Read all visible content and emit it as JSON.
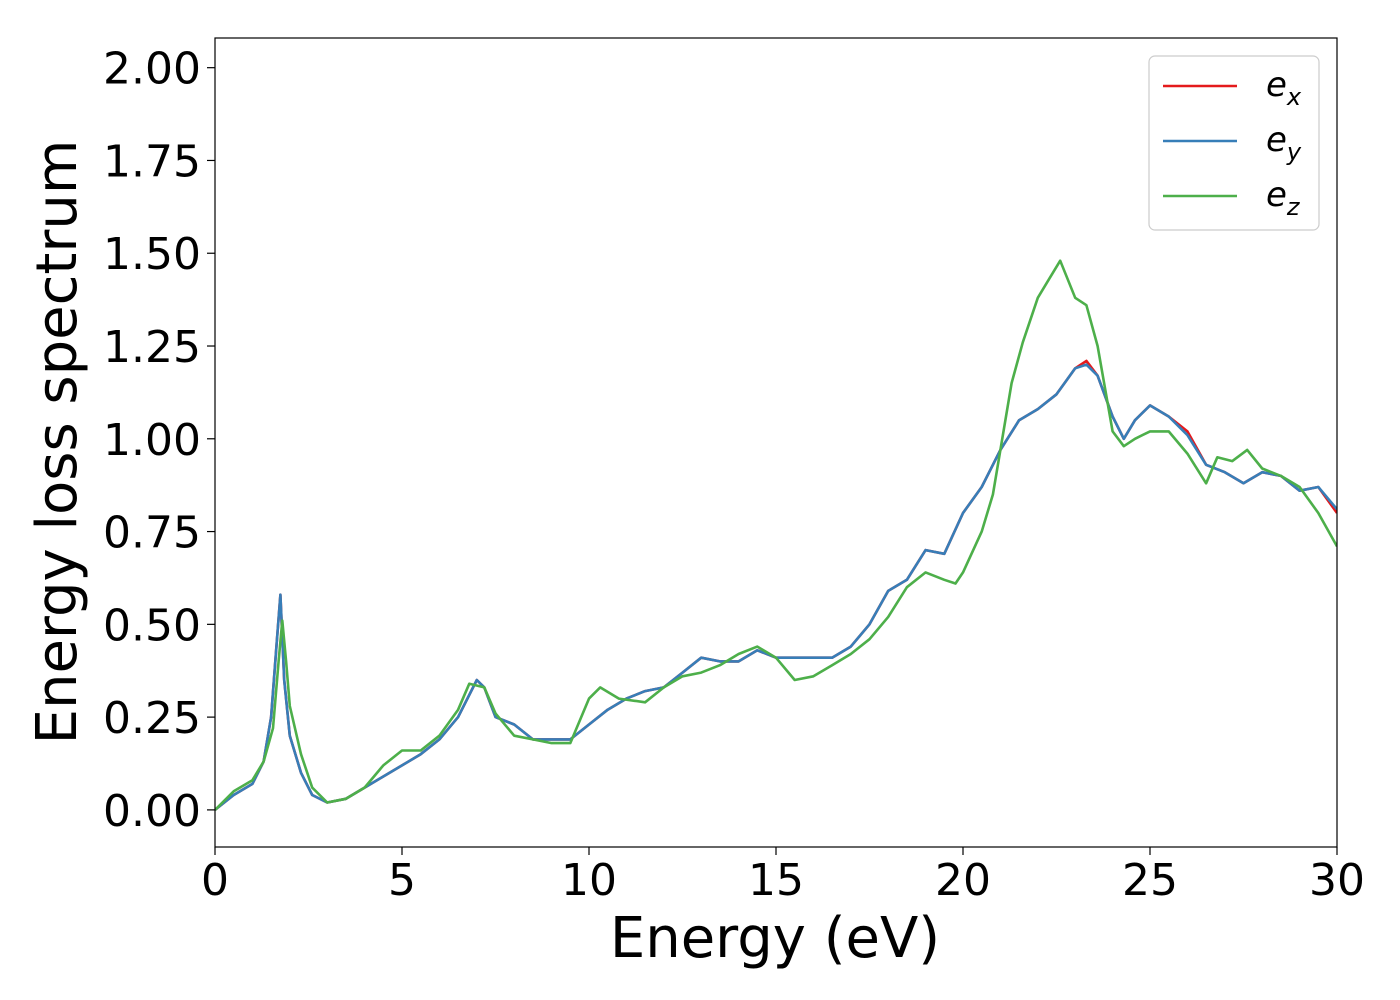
{
  "chart_data": {
    "type": "line",
    "title": "",
    "xlabel": "Energy (eV)",
    "ylabel": "Energy loss spectrum",
    "xlim": [
      0,
      30
    ],
    "ylim": [
      -0.1,
      2.08
    ],
    "xticks": [
      0,
      5,
      10,
      15,
      20,
      25,
      30
    ],
    "xtick_labels": [
      "0",
      "5",
      "10",
      "15",
      "20",
      "25",
      "30"
    ],
    "yticks": [
      0.0,
      0.25,
      0.5,
      0.75,
      1.0,
      1.25,
      1.5,
      1.75,
      2.0
    ],
    "ytick_labels": [
      "0.00",
      "0.25",
      "0.50",
      "0.75",
      "1.00",
      "1.25",
      "1.50",
      "1.75",
      "2.00"
    ],
    "grid": false,
    "legend_position": "top-right",
    "series": [
      {
        "name": "e_x",
        "label_base": "e",
        "label_sub": "x",
        "color": "#e41a1c",
        "points": [
          [
            0,
            0
          ],
          [
            0.5,
            0.04
          ],
          [
            1.0,
            0.07
          ],
          [
            1.3,
            0.13
          ],
          [
            1.5,
            0.25
          ],
          [
            1.65,
            0.45
          ],
          [
            1.75,
            0.58
          ],
          [
            1.85,
            0.35
          ],
          [
            2.0,
            0.2
          ],
          [
            2.3,
            0.1
          ],
          [
            2.6,
            0.04
          ],
          [
            3.0,
            0.02
          ],
          [
            3.5,
            0.03
          ],
          [
            4.0,
            0.06
          ],
          [
            4.5,
            0.09
          ],
          [
            5.0,
            0.12
          ],
          [
            5.5,
            0.15
          ],
          [
            6.0,
            0.19
          ],
          [
            6.5,
            0.25
          ],
          [
            7.0,
            0.35
          ],
          [
            7.2,
            0.33
          ],
          [
            7.5,
            0.25
          ],
          [
            8.0,
            0.23
          ],
          [
            8.5,
            0.19
          ],
          [
            9.0,
            0.19
          ],
          [
            9.5,
            0.19
          ],
          [
            10.0,
            0.23
          ],
          [
            10.5,
            0.27
          ],
          [
            11.0,
            0.3
          ],
          [
            11.5,
            0.32
          ],
          [
            12.0,
            0.33
          ],
          [
            12.5,
            0.37
          ],
          [
            13.0,
            0.41
          ],
          [
            13.5,
            0.4
          ],
          [
            14.0,
            0.4
          ],
          [
            14.5,
            0.43
          ],
          [
            15.0,
            0.41
          ],
          [
            15.5,
            0.41
          ],
          [
            16.0,
            0.41
          ],
          [
            16.5,
            0.41
          ],
          [
            17.0,
            0.44
          ],
          [
            17.5,
            0.5
          ],
          [
            18.0,
            0.59
          ],
          [
            18.5,
            0.62
          ],
          [
            19.0,
            0.7
          ],
          [
            19.5,
            0.69
          ],
          [
            20.0,
            0.8
          ],
          [
            20.5,
            0.87
          ],
          [
            21.0,
            0.97
          ],
          [
            21.5,
            1.05
          ],
          [
            22.0,
            1.08
          ],
          [
            22.5,
            1.12
          ],
          [
            23.0,
            1.19
          ],
          [
            23.3,
            1.21
          ],
          [
            23.6,
            1.17
          ],
          [
            24.0,
            1.06
          ],
          [
            24.3,
            1.0
          ],
          [
            24.6,
            1.05
          ],
          [
            25.0,
            1.09
          ],
          [
            25.5,
            1.06
          ],
          [
            26.0,
            1.02
          ],
          [
            26.5,
            0.93
          ],
          [
            27.0,
            0.91
          ],
          [
            27.5,
            0.88
          ],
          [
            28.0,
            0.91
          ],
          [
            28.5,
            0.9
          ],
          [
            29.0,
            0.86
          ],
          [
            29.5,
            0.87
          ],
          [
            30.0,
            0.8
          ]
        ]
      },
      {
        "name": "e_y",
        "label_base": "e",
        "label_sub": "y",
        "color": "#377eb8",
        "points": [
          [
            0,
            0
          ],
          [
            0.5,
            0.04
          ],
          [
            1.0,
            0.07
          ],
          [
            1.3,
            0.13
          ],
          [
            1.5,
            0.25
          ],
          [
            1.65,
            0.45
          ],
          [
            1.75,
            0.58
          ],
          [
            1.85,
            0.35
          ],
          [
            2.0,
            0.2
          ],
          [
            2.3,
            0.1
          ],
          [
            2.6,
            0.04
          ],
          [
            3.0,
            0.02
          ],
          [
            3.5,
            0.03
          ],
          [
            4.0,
            0.06
          ],
          [
            4.5,
            0.09
          ],
          [
            5.0,
            0.12
          ],
          [
            5.5,
            0.15
          ],
          [
            6.0,
            0.19
          ],
          [
            6.5,
            0.25
          ],
          [
            7.0,
            0.35
          ],
          [
            7.2,
            0.33
          ],
          [
            7.5,
            0.25
          ],
          [
            8.0,
            0.23
          ],
          [
            8.5,
            0.19
          ],
          [
            9.0,
            0.19
          ],
          [
            9.5,
            0.19
          ],
          [
            10.0,
            0.23
          ],
          [
            10.5,
            0.27
          ],
          [
            11.0,
            0.3
          ],
          [
            11.5,
            0.32
          ],
          [
            12.0,
            0.33
          ],
          [
            12.5,
            0.37
          ],
          [
            13.0,
            0.41
          ],
          [
            13.5,
            0.4
          ],
          [
            14.0,
            0.4
          ],
          [
            14.5,
            0.43
          ],
          [
            15.0,
            0.41
          ],
          [
            15.5,
            0.41
          ],
          [
            16.0,
            0.41
          ],
          [
            16.5,
            0.41
          ],
          [
            17.0,
            0.44
          ],
          [
            17.5,
            0.5
          ],
          [
            18.0,
            0.59
          ],
          [
            18.5,
            0.62
          ],
          [
            19.0,
            0.7
          ],
          [
            19.5,
            0.69
          ],
          [
            20.0,
            0.8
          ],
          [
            20.5,
            0.87
          ],
          [
            21.0,
            0.97
          ],
          [
            21.5,
            1.05
          ],
          [
            22.0,
            1.08
          ],
          [
            22.5,
            1.12
          ],
          [
            23.0,
            1.19
          ],
          [
            23.3,
            1.2
          ],
          [
            23.6,
            1.17
          ],
          [
            24.0,
            1.06
          ],
          [
            24.3,
            1.0
          ],
          [
            24.6,
            1.05
          ],
          [
            25.0,
            1.09
          ],
          [
            25.5,
            1.06
          ],
          [
            26.0,
            1.01
          ],
          [
            26.5,
            0.93
          ],
          [
            27.0,
            0.91
          ],
          [
            27.5,
            0.88
          ],
          [
            28.0,
            0.91
          ],
          [
            28.5,
            0.9
          ],
          [
            29.0,
            0.86
          ],
          [
            29.5,
            0.87
          ],
          [
            30.0,
            0.81
          ]
        ]
      },
      {
        "name": "e_z",
        "label_base": "e",
        "label_sub": "z",
        "color": "#4daf4a",
        "points": [
          [
            0,
            0
          ],
          [
            0.5,
            0.05
          ],
          [
            1.0,
            0.08
          ],
          [
            1.3,
            0.13
          ],
          [
            1.55,
            0.22
          ],
          [
            1.7,
            0.4
          ],
          [
            1.8,
            0.51
          ],
          [
            1.9,
            0.4
          ],
          [
            2.0,
            0.28
          ],
          [
            2.3,
            0.15
          ],
          [
            2.6,
            0.06
          ],
          [
            3.0,
            0.02
          ],
          [
            3.5,
            0.03
          ],
          [
            4.0,
            0.06
          ],
          [
            4.5,
            0.12
          ],
          [
            5.0,
            0.16
          ],
          [
            5.5,
            0.16
          ],
          [
            6.0,
            0.2
          ],
          [
            6.5,
            0.27
          ],
          [
            6.8,
            0.34
          ],
          [
            7.2,
            0.33
          ],
          [
            7.5,
            0.26
          ],
          [
            8.0,
            0.2
          ],
          [
            8.5,
            0.19
          ],
          [
            9.0,
            0.18
          ],
          [
            9.5,
            0.18
          ],
          [
            10.0,
            0.3
          ],
          [
            10.3,
            0.33
          ],
          [
            10.8,
            0.3
          ],
          [
            11.5,
            0.29
          ],
          [
            12.0,
            0.33
          ],
          [
            12.5,
            0.36
          ],
          [
            13.0,
            0.37
          ],
          [
            13.5,
            0.39
          ],
          [
            14.0,
            0.42
          ],
          [
            14.5,
            0.44
          ],
          [
            15.0,
            0.41
          ],
          [
            15.5,
            0.35
          ],
          [
            16.0,
            0.36
          ],
          [
            16.5,
            0.39
          ],
          [
            17.0,
            0.42
          ],
          [
            17.5,
            0.46
          ],
          [
            18.0,
            0.52
          ],
          [
            18.5,
            0.6
          ],
          [
            19.0,
            0.64
          ],
          [
            19.5,
            0.62
          ],
          [
            19.8,
            0.61
          ],
          [
            20.0,
            0.64
          ],
          [
            20.5,
            0.75
          ],
          [
            20.8,
            0.85
          ],
          [
            21.0,
            0.97
          ],
          [
            21.3,
            1.15
          ],
          [
            21.6,
            1.26
          ],
          [
            22.0,
            1.38
          ],
          [
            22.3,
            1.43
          ],
          [
            22.6,
            1.48
          ],
          [
            23.0,
            1.38
          ],
          [
            23.3,
            1.36
          ],
          [
            23.6,
            1.25
          ],
          [
            24.0,
            1.02
          ],
          [
            24.3,
            0.98
          ],
          [
            24.6,
            1.0
          ],
          [
            25.0,
            1.02
          ],
          [
            25.5,
            1.02
          ],
          [
            26.0,
            0.96
          ],
          [
            26.5,
            0.88
          ],
          [
            26.8,
            0.95
          ],
          [
            27.2,
            0.94
          ],
          [
            27.6,
            0.97
          ],
          [
            28.0,
            0.92
          ],
          [
            28.5,
            0.9
          ],
          [
            29.0,
            0.87
          ],
          [
            29.5,
            0.8
          ],
          [
            30.0,
            0.71
          ]
        ]
      }
    ]
  }
}
